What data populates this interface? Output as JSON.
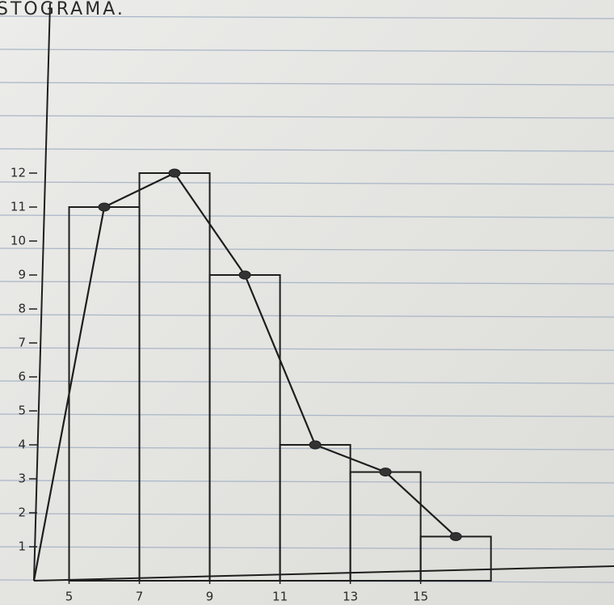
{
  "chart_data": {
    "type": "histogram",
    "title": "STOGRAMA.",
    "bins": [
      5,
      7,
      9,
      11,
      13,
      15,
      17
    ],
    "counts": [
      11,
      12,
      9,
      4,
      3.2,
      1.3
    ],
    "polygon": {
      "x": [
        4,
        6,
        8,
        10,
        12,
        14,
        16
      ],
      "values": [
        0,
        11,
        12,
        9,
        4,
        3.2,
        1.3
      ]
    },
    "xlim": [
      4,
      20.5
    ],
    "ylim": [
      0,
      17
    ],
    "xticks": [
      5,
      7,
      9,
      11,
      13,
      15
    ],
    "yticks": [
      1,
      2,
      3,
      4,
      5,
      6,
      7,
      8,
      9,
      10,
      11,
      12
    ],
    "color": "#1e1e1e"
  }
}
